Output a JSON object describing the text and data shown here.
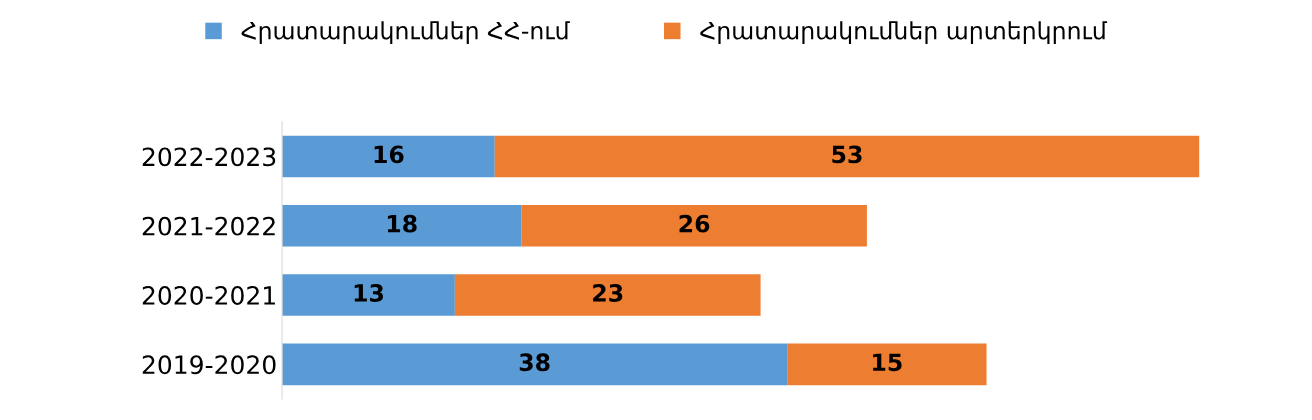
{
  "chart_data": {
    "type": "bar",
    "orientation": "horizontal",
    "stacked": true,
    "data_labels": true,
    "legend": "top",
    "categories": [
      "2022-2023",
      "2021-2022",
      "2020-2021",
      "2019-2020"
    ],
    "series": [
      {
        "name": "Հրատարակումներ ՀՀ-ում",
        "color": "#5b9bd5",
        "values": [
          16,
          18,
          13,
          38
        ]
      },
      {
        "name": "Հրատարակումներ արտերկրում",
        "color": "#ed7d31",
        "values": [
          53,
          26,
          23,
          15
        ]
      }
    ]
  }
}
